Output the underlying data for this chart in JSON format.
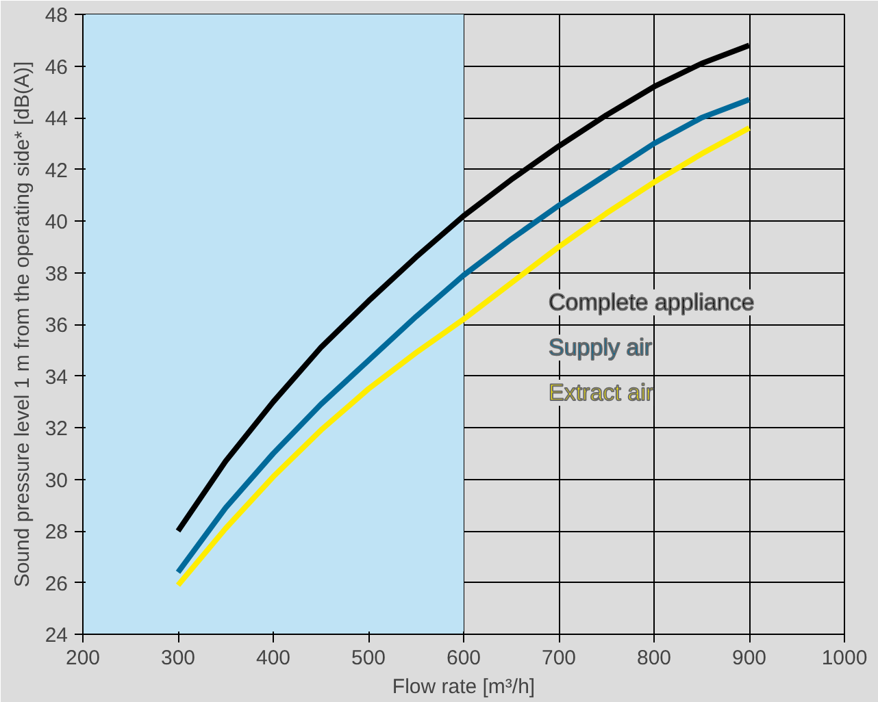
{
  "chart_data": {
    "type": "line",
    "xlabel": "Flow rate [m³/h]",
    "ylabel": "Sound pressure level 1 m from the operating side* [dB(A)]",
    "x": [
      300,
      350,
      400,
      450,
      500,
      550,
      600,
      650,
      700,
      750,
      800,
      850,
      900
    ],
    "series": [
      {
        "name": "Complete appliance",
        "color": "#000000",
        "values": [
          28.0,
          30.7,
          33.0,
          35.1,
          36.9,
          38.6,
          40.2,
          41.6,
          42.9,
          44.1,
          45.2,
          46.1,
          46.8
        ]
      },
      {
        "name": "Supply air",
        "color": "#006a9a",
        "values": [
          26.4,
          28.9,
          31.0,
          32.9,
          34.6,
          36.3,
          37.9,
          39.3,
          40.6,
          41.8,
          43.0,
          44.0,
          44.7
        ]
      },
      {
        "name": "Extract air",
        "color": "#ffed00",
        "values": [
          25.9,
          28.1,
          30.1,
          31.9,
          33.5,
          34.9,
          36.2,
          37.6,
          39.0,
          40.3,
          41.5,
          42.6,
          43.6
        ]
      }
    ],
    "xlim": [
      200,
      1000
    ],
    "ylim": [
      24,
      48
    ],
    "xticks": [
      200,
      300,
      400,
      500,
      600,
      700,
      800,
      900,
      1000
    ],
    "yticks": [
      24,
      26,
      28,
      30,
      32,
      34,
      36,
      38,
      40,
      42,
      44,
      46,
      48
    ],
    "bands": [
      {
        "axis": "x",
        "from": 200,
        "to": 600,
        "color": "#bfe3f5"
      }
    ],
    "grid": true,
    "legend": "right",
    "marker": "none",
    "line_style": "solid"
  }
}
